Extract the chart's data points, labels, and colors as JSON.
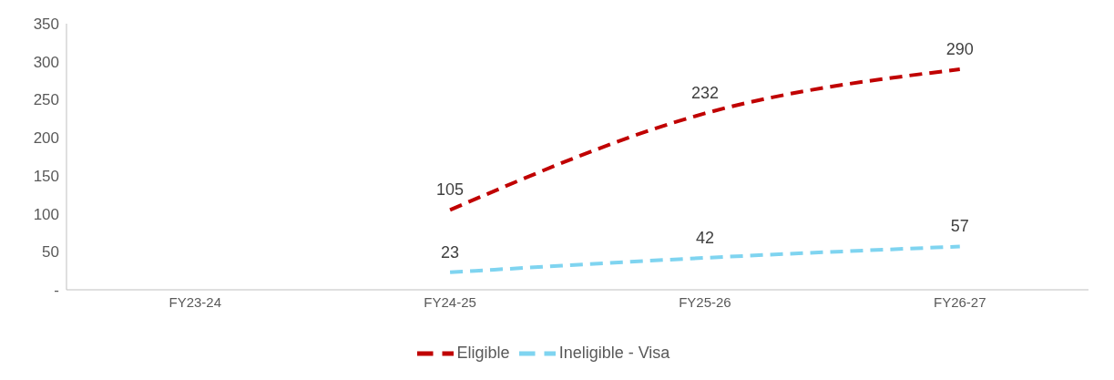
{
  "chart_data": {
    "type": "line",
    "categories": [
      "FY23-24",
      "FY24-25",
      "FY25-26",
      "FY26-27"
    ],
    "series": [
      {
        "name": "Eligible",
        "color": "#c00000",
        "values": [
          null,
          105,
          232,
          290
        ]
      },
      {
        "name": "Ineligible - Visa",
        "color": "#7fd4f0",
        "values": [
          null,
          23,
          42,
          57
        ]
      }
    ],
    "ylim": [
      0,
      350
    ],
    "yticks": [
      {
        "value": 0,
        "label": "-"
      },
      50,
      100,
      150,
      200,
      250,
      300,
      350
    ],
    "data_labels": true,
    "legend": "bottom",
    "line_style": "dashed",
    "marker": "none",
    "grid": false
  }
}
